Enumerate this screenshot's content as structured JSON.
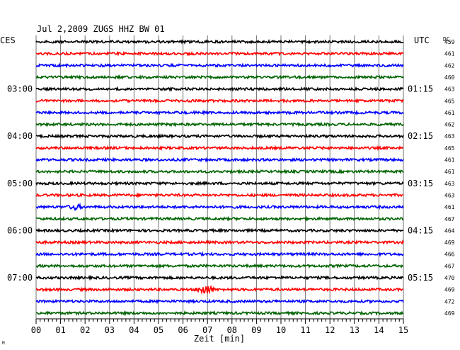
{
  "chart_data": {
    "type": "line",
    "title": "Jul 2,2009   ZUGS HHZ BW 01",
    "left_header": "CES",
    "right_header": "UTC",
    "dc_header": "DC",
    "xlabel": "Zeit [min]",
    "xlim": [
      0,
      15
    ],
    "x_ticks": [
      "00",
      "01",
      "02",
      "03",
      "04",
      "05",
      "06",
      "07",
      "08",
      "09",
      "10",
      "11",
      "12",
      "13",
      "14",
      "15"
    ],
    "trace_count": 24,
    "trace_colors": [
      "#000000",
      "#ff0000",
      "#0000ff",
      "#006400"
    ],
    "left_hour_labels": [
      "03:00",
      "04:00",
      "05:00",
      "06:00",
      "07:00"
    ],
    "right_hour_labels": [
      "01:15",
      "02:15",
      "03:15",
      "04:15",
      "05:15"
    ],
    "hour_label_trace_indices": [
      4,
      8,
      12,
      16,
      20
    ],
    "dc_offsets": [
      "459",
      "461",
      "462",
      "460",
      "463",
      "465",
      "461",
      "462",
      "463",
      "465",
      "461",
      "461",
      "463",
      "463",
      "461",
      "467",
      "464",
      "469",
      "466",
      "467",
      "470",
      "469",
      "472",
      "469"
    ],
    "events": [
      {
        "trace_index": 14,
        "minute": 1.6,
        "amplitude": "small"
      },
      {
        "trace_index": 21,
        "minute": 6.9,
        "amplitude": "large"
      }
    ],
    "grid": true,
    "footer_mark": "M"
  }
}
